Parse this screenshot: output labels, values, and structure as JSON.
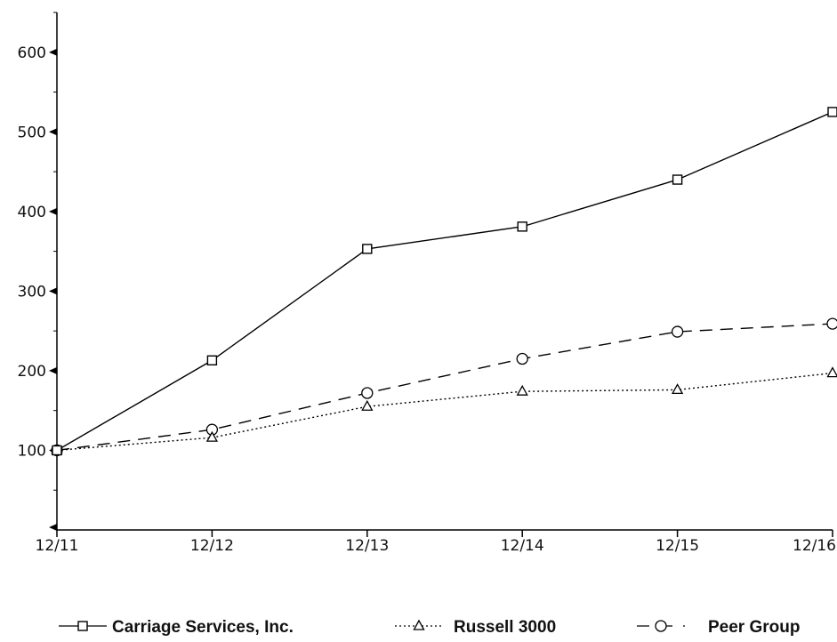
{
  "chart_data": {
    "type": "line",
    "title": "",
    "xlabel": "",
    "ylabel": "",
    "categories": [
      "12/11",
      "12/12",
      "12/13",
      "12/14",
      "12/15",
      "12/16"
    ],
    "ylim": [
      0,
      650
    ],
    "y_ticks": [
      100,
      200,
      300,
      400,
      500,
      600
    ],
    "grid": false,
    "legend_position": "bottom",
    "series": [
      {
        "name": "Carriage Services, Inc.",
        "marker": "square",
        "dash": "solid",
        "values": [
          100,
          213,
          353,
          381,
          440,
          525
        ]
      },
      {
        "name": "Russell 3000",
        "marker": "triangle",
        "dash": "dotted",
        "values": [
          100,
          116,
          155,
          174,
          176,
          197
        ]
      },
      {
        "name": "Peer Group",
        "marker": "circle",
        "dash": "dashed",
        "values": [
          100,
          126,
          172,
          215,
          249,
          259
        ]
      }
    ]
  }
}
